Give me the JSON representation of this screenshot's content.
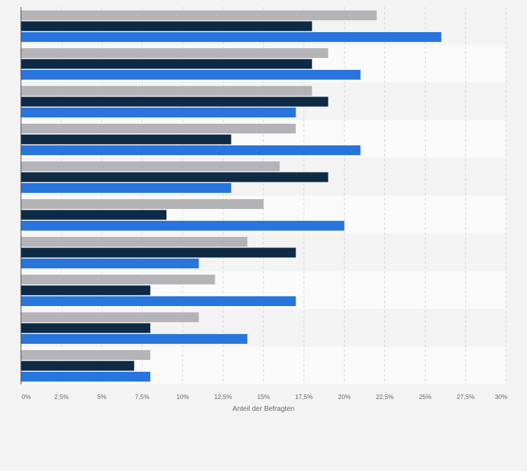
{
  "chart_data": {
    "type": "bar",
    "orientation": "horizontal",
    "categories": [
      "",
      "",
      "",
      "",
      "",
      "",
      "",
      "",
      "",
      ""
    ],
    "series": [
      {
        "color": "#b4b4b8",
        "values": [
          22,
          19,
          18,
          17,
          16,
          15,
          14,
          12,
          11,
          8
        ]
      },
      {
        "color": "#0e2a45",
        "values": [
          18,
          18,
          19,
          13,
          19,
          9,
          17,
          8,
          8,
          7
        ]
      },
      {
        "color": "#2876dd",
        "values": [
          26,
          21,
          17,
          21,
          13,
          20,
          11,
          17,
          14,
          8
        ]
      }
    ],
    "x_ticks": [
      "0%",
      "2,5%",
      "5%",
      "7,5%",
      "10%",
      "12,5%",
      "15%",
      "17,5%",
      "20%",
      "22,5%",
      "25%",
      "27,5%",
      "30%"
    ],
    "xlabel": "Anteil der Befragten",
    "xlim": [
      0,
      30
    ],
    "grid": true,
    "colors": {
      "background": "#f3f3f3",
      "band_light": "#fafafa",
      "band_dark": "#f3f3f3",
      "grid": "#d6d6d6",
      "axis": "#444444",
      "tick_text": "#666666"
    }
  }
}
